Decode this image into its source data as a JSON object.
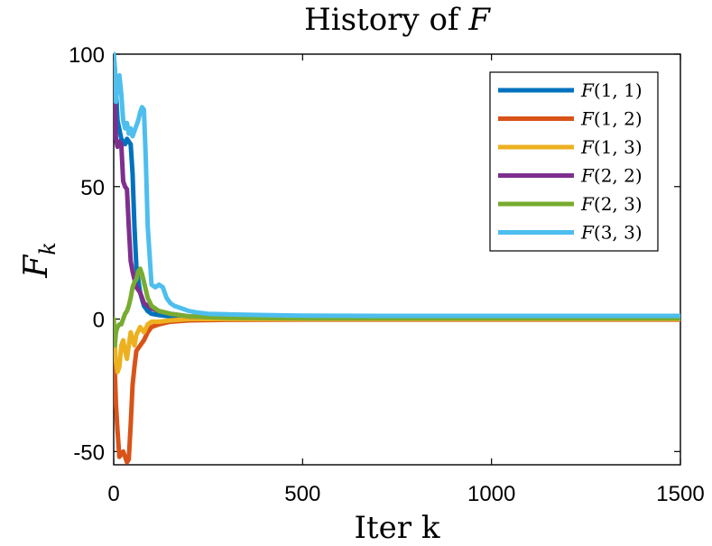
{
  "chart_data": {
    "type": "line",
    "title_prefix": "History of ",
    "title_var": "F",
    "xlabel": "Iter k",
    "ylabel_main": "F",
    "ylabel_sub": "k",
    "xlim": [
      0,
      1500
    ],
    "ylim": [
      -55,
      100
    ],
    "xticks": [
      0,
      500,
      1000,
      1500
    ],
    "xtick_labels": [
      "0",
      "500",
      "1000",
      "1500"
    ],
    "yticks": [
      -50,
      0,
      50,
      100
    ],
    "ytick_labels": [
      "-50",
      "0",
      "50",
      "100"
    ],
    "grid": false,
    "legend_position": "top-right",
    "series": [
      {
        "name": "F(1,1)",
        "label_text": "F(1, 1)",
        "color": "#0072BD",
        "x": [
          0,
          5,
          10,
          20,
          30,
          35,
          40,
          45,
          50,
          55,
          60,
          70,
          80,
          90,
          100,
          120,
          150,
          200,
          300,
          500,
          1000,
          1500
        ],
        "y": [
          100,
          90,
          75,
          68,
          66,
          68,
          67,
          66,
          55,
          35,
          20,
          10,
          5,
          3,
          2,
          1.5,
          1,
          0.8,
          0.7,
          0.7,
          0.7,
          0.7
        ]
      },
      {
        "name": "F(1,2)",
        "label_text": "F(1, 2)",
        "color": "#D95319",
        "x": [
          0,
          3,
          6,
          10,
          15,
          20,
          25,
          30,
          35,
          40,
          45,
          50,
          55,
          60,
          70,
          80,
          90,
          100,
          120,
          150,
          200,
          300,
          500,
          1500
        ],
        "y": [
          0,
          -20,
          -32,
          -42,
          -52,
          -51,
          -50,
          -52,
          -54,
          -53,
          -40,
          -25,
          -18,
          -12,
          -10,
          -8,
          -5,
          -3,
          -2,
          -1,
          -0.5,
          -0.3,
          -0.2,
          -0.2
        ]
      },
      {
        "name": "F(1,3)",
        "label_text": "F(1, 3)",
        "color": "#EDB120",
        "x": [
          0,
          5,
          10,
          15,
          20,
          25,
          30,
          35,
          40,
          45,
          50,
          55,
          60,
          70,
          80,
          90,
          100,
          120,
          150,
          200,
          300,
          500,
          1500
        ],
        "y": [
          0,
          -15,
          -20,
          -18,
          -10,
          -8,
          -12,
          -15,
          -10,
          -5,
          -8,
          -10,
          -6,
          -3,
          -5,
          -2,
          -1,
          -1,
          -0.5,
          0,
          0,
          0,
          0
        ]
      },
      {
        "name": "F(2,2)",
        "label_text": "F(2, 2)",
        "color": "#7E2F8E",
        "x": [
          0,
          3,
          6,
          10,
          15,
          20,
          25,
          30,
          35,
          40,
          45,
          50,
          55,
          60,
          70,
          80,
          90,
          100,
          120,
          150,
          200,
          300,
          500,
          1500
        ],
        "y": [
          98,
          80,
          68,
          65,
          67,
          66,
          52,
          50,
          49,
          35,
          22,
          18,
          15,
          12,
          10,
          6,
          5,
          4,
          3,
          2,
          1,
          0.8,
          0.5,
          0.5
        ]
      },
      {
        "name": "F(2,3)",
        "label_text": "F(2, 3)",
        "color": "#77AC30",
        "x": [
          0,
          3,
          6,
          10,
          15,
          20,
          25,
          30,
          35,
          40,
          45,
          50,
          55,
          60,
          65,
          70,
          75,
          80,
          90,
          100,
          120,
          150,
          200,
          300,
          500,
          1500
        ],
        "y": [
          0,
          -10,
          -5,
          -3,
          -2,
          -2,
          0,
          2,
          3,
          5,
          8,
          12,
          14,
          15,
          18,
          19,
          17,
          14,
          8,
          5,
          3,
          2,
          1,
          0.5,
          0.3,
          0.3
        ]
      },
      {
        "name": "F(3,3)",
        "label_text": "F(3, 3)",
        "color": "#4DBEEE",
        "x": [
          0,
          3,
          6,
          10,
          15,
          20,
          25,
          30,
          35,
          40,
          45,
          50,
          55,
          60,
          65,
          70,
          75,
          80,
          85,
          90,
          100,
          110,
          120,
          130,
          140,
          150,
          160,
          180,
          200,
          220,
          250,
          300,
          400,
          500,
          700,
          1000,
          1200,
          1500
        ],
        "y": [
          100,
          95,
          82,
          88,
          92,
          85,
          75,
          72,
          74,
          70,
          72,
          69,
          71,
          73,
          75,
          78,
          80,
          79,
          60,
          35,
          13,
          12,
          13,
          12,
          8,
          6,
          5,
          4,
          3,
          2.5,
          2,
          1.8,
          1.5,
          1.3,
          1.2,
          1.2,
          1.2,
          1.2
        ]
      }
    ]
  }
}
